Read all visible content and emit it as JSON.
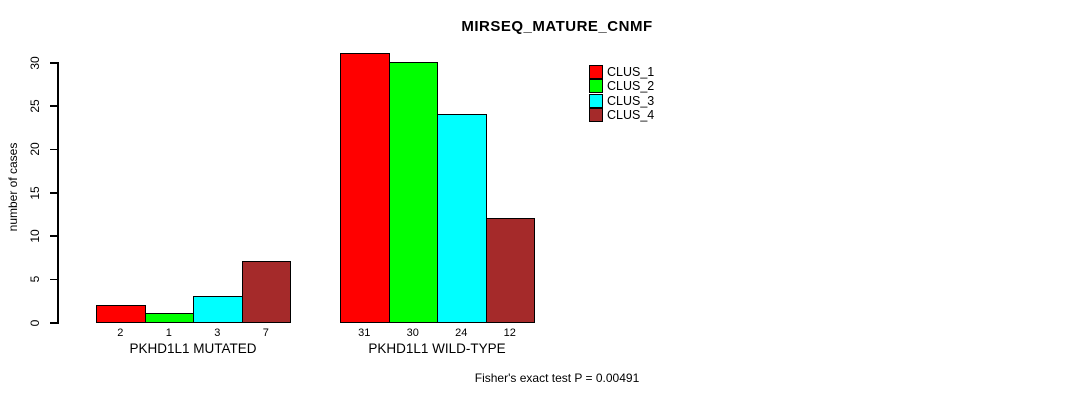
{
  "title": "MIRSEQ_MATURE_CNMF",
  "footnote": "Fisher's exact test P = 0.00491",
  "chart_data": {
    "type": "bar",
    "title": "MIRSEQ_MATURE_CNMF",
    "xlabel": "",
    "ylabel": "number of cases",
    "categories": [
      "PKHD1L1 MUTATED",
      "PKHD1L1 WILD-TYPE"
    ],
    "series": [
      {
        "name": "CLUS_1",
        "color": "#ff0000",
        "values": [
          2,
          31
        ]
      },
      {
        "name": "CLUS_2",
        "color": "#00ff00",
        "values": [
          1,
          30
        ]
      },
      {
        "name": "CLUS_3",
        "color": "#00ffff",
        "values": [
          3,
          24
        ]
      },
      {
        "name": "CLUS_4",
        "color": "#a52a2a",
        "values": [
          7,
          12
        ]
      }
    ],
    "bar_value_labels": [
      [
        "2",
        "1",
        "3",
        "7"
      ],
      [
        "31",
        "30",
        "24",
        "12"
      ]
    ],
    "yticks": [
      0,
      5,
      10,
      15,
      20,
      25,
      30
    ],
    "ylim": [
      0,
      31
    ],
    "grid": false,
    "legend_position": "top-right",
    "legend_entries": [
      "CLUS_1",
      "CLUS_2",
      "CLUS_3",
      "CLUS_4"
    ],
    "annotation": "Fisher's exact test P = 0.00491"
  }
}
